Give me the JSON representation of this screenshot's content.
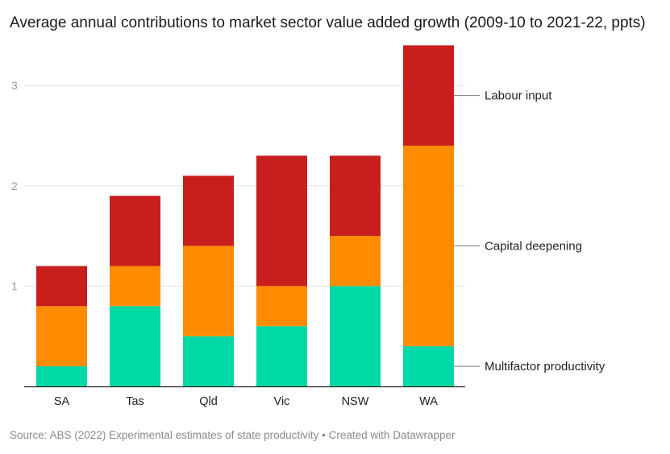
{
  "chart_data": {
    "type": "bar",
    "stacked": true,
    "title": "Average annual contributions to market sector value added growth (2009-10 to 2021-22, ppts)",
    "categories": [
      "SA",
      "Tas",
      "Qld",
      "Vic",
      "NSW",
      "WA"
    ],
    "series": [
      {
        "name": "Multifactor productivity",
        "color": "#00d9a6",
        "values": [
          0.2,
          0.8,
          0.5,
          0.6,
          1.0,
          0.4
        ]
      },
      {
        "name": "Capital deepening",
        "color": "#ff8c00",
        "values": [
          0.6,
          0.4,
          0.9,
          0.4,
          0.5,
          2.0
        ]
      },
      {
        "name": "Labour input",
        "color": "#c81e1e",
        "values": [
          0.4,
          0.7,
          0.7,
          1.3,
          0.8,
          1.0
        ]
      }
    ],
    "yticks": [
      1,
      2,
      3
    ],
    "ylim": [
      0,
      3.4
    ],
    "grid": true,
    "legend_placement": "right, inline labels"
  },
  "footer": {
    "source": "Source: ABS (2022) Experimental estimates of state productivity • Created with Datawrapper"
  }
}
